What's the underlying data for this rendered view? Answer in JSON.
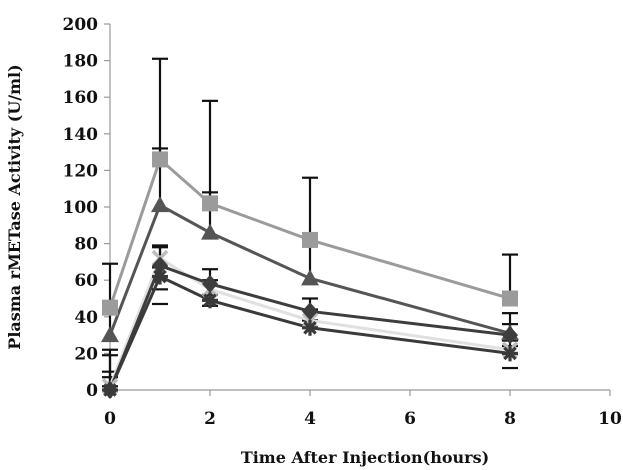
{
  "chart_data": {
    "type": "line",
    "title": "",
    "xlabel": "Time After Injection(hours)",
    "ylabel": "Plasma rMETase Activity (U/ml)",
    "xlim": [
      0,
      10
    ],
    "ylim": [
      0,
      200
    ],
    "xticks": [
      0,
      2,
      4,
      6,
      8,
      10
    ],
    "yticks": [
      0,
      20,
      40,
      60,
      80,
      100,
      120,
      140,
      160,
      180,
      200
    ],
    "grid": false,
    "legend": "none",
    "x": [
      0,
      1,
      2,
      4,
      8
    ],
    "series": [
      {
        "marker": "square",
        "color": "#9b9b9b",
        "values": [
          45,
          126,
          102,
          82,
          50
        ],
        "err_high": [
          69,
          181,
          158,
          116,
          74
        ]
      },
      {
        "marker": "triangle",
        "color": "#555555",
        "values": [
          30,
          101,
          86,
          61,
          31
        ],
        "err_high": [
          43,
          132,
          108,
          80,
          42
        ]
      },
      {
        "marker": "diamond",
        "color": "#3d3d3d",
        "values": [
          0,
          68,
          58,
          43,
          30
        ],
        "err_high": [
          19,
          79,
          66,
          50,
          36
        ]
      },
      {
        "marker": "x",
        "color": "#e0e0e0",
        "values": [
          2,
          72,
          55,
          38,
          22
        ],
        "err_high": [
          22,
          78,
          60,
          44,
          27
        ]
      },
      {
        "marker": "star",
        "color": "#3a3a3a",
        "values": [
          0,
          62,
          49,
          34,
          20
        ],
        "err_high": [
          10,
          67,
          52,
          38,
          24
        ]
      }
    ]
  }
}
